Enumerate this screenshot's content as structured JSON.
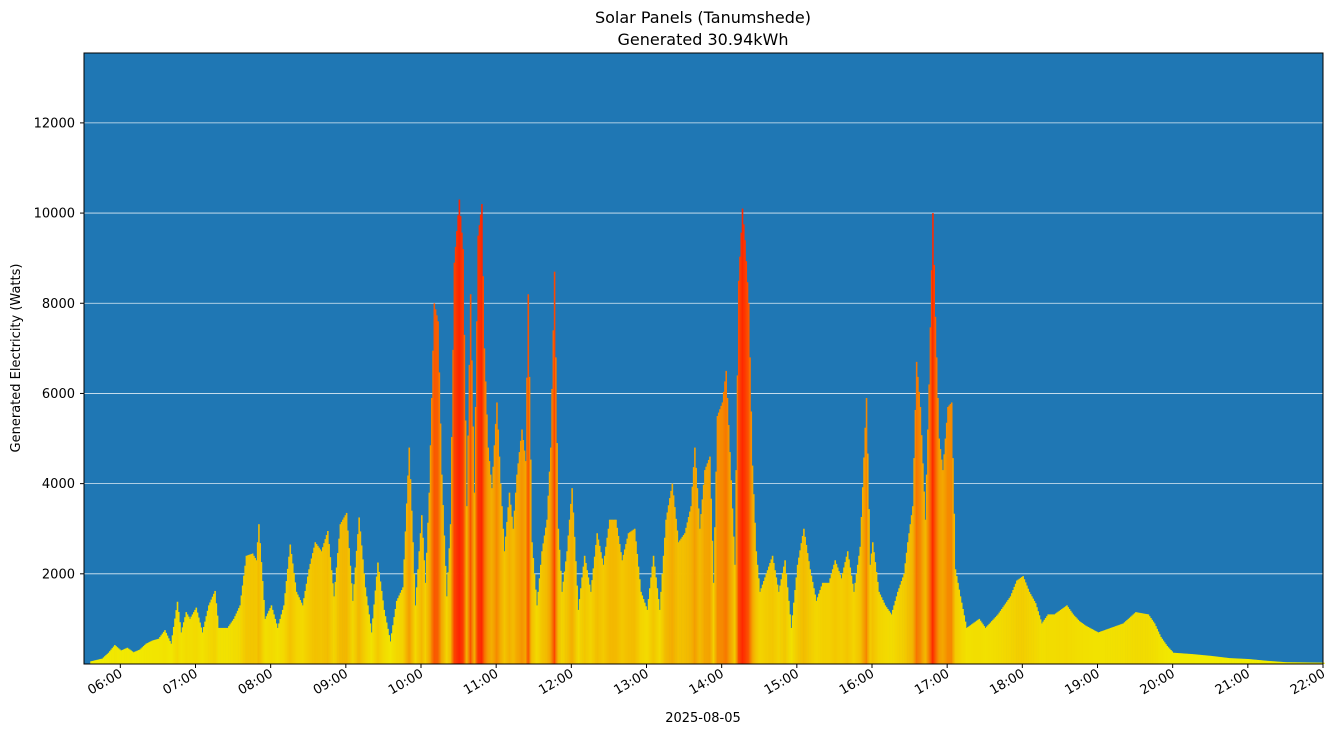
{
  "chart_data": {
    "type": "bar",
    "title": "Solar Panels (Tanumshede)",
    "subtitle": "Generated 30.94kWh",
    "xlabel": "2025-08-05",
    "ylabel": "Generated Electricity (Watts)",
    "xlim": [
      "05:31",
      "22:00"
    ],
    "ylim": [
      0,
      13550
    ],
    "y_ticks": [
      2000,
      4000,
      6000,
      8000,
      10000,
      12000
    ],
    "x_ticks": [
      "06:00",
      "07:00",
      "08:00",
      "09:00",
      "10:00",
      "11:00",
      "12:00",
      "13:00",
      "14:00",
      "15:00",
      "16:00",
      "17:00",
      "18:00",
      "19:00",
      "20:00",
      "21:00",
      "22:00"
    ],
    "grid": "horizontal",
    "colors": {
      "plot_background": "#1f77b4",
      "grid": "#ffffff",
      "low": "#f2ee00",
      "mid": "#f4a000",
      "high": "#ff2000"
    },
    "color_scale": "yellow at low power to red at high power",
    "bar_interval_minutes": 1,
    "profile": [
      [
        "05:36",
        60
      ],
      [
        "05:45",
        120
      ],
      [
        "05:50",
        250
      ],
      [
        "05:55",
        420
      ],
      [
        "06:00",
        300
      ],
      [
        "06:05",
        360
      ],
      [
        "06:10",
        260
      ],
      [
        "06:15",
        320
      ],
      [
        "06:20",
        450
      ],
      [
        "06:25",
        520
      ],
      [
        "06:30",
        560
      ],
      [
        "06:35",
        750
      ],
      [
        "06:40",
        450
      ],
      [
        "06:45",
        1380
      ],
      [
        "06:48",
        700
      ],
      [
        "06:52",
        1150
      ],
      [
        "06:55",
        1000
      ],
      [
        "07:00",
        1250
      ],
      [
        "07:05",
        700
      ],
      [
        "07:10",
        1300
      ],
      [
        "07:15",
        1620
      ],
      [
        "07:18",
        800
      ],
      [
        "07:25",
        800
      ],
      [
        "07:30",
        1000
      ],
      [
        "07:35",
        1300
      ],
      [
        "07:40",
        2400
      ],
      [
        "07:45",
        2450
      ],
      [
        "07:48",
        2300
      ],
      [
        "07:50",
        3100
      ],
      [
        "07:55",
        1000
      ],
      [
        "08:00",
        1300
      ],
      [
        "08:05",
        800
      ],
      [
        "08:10",
        1300
      ],
      [
        "08:15",
        2650
      ],
      [
        "08:20",
        1600
      ],
      [
        "08:25",
        1300
      ],
      [
        "08:30",
        2100
      ],
      [
        "08:35",
        2700
      ],
      [
        "08:40",
        2500
      ],
      [
        "08:45",
        2950
      ],
      [
        "08:50",
        1500
      ],
      [
        "08:55",
        3100
      ],
      [
        "09:00",
        3350
      ],
      [
        "09:05",
        1400
      ],
      [
        "09:10",
        3250
      ],
      [
        "09:15",
        1700
      ],
      [
        "09:20",
        700
      ],
      [
        "09:25",
        2250
      ],
      [
        "09:30",
        1200
      ],
      [
        "09:35",
        500
      ],
      [
        "09:40",
        1400
      ],
      [
        "09:45",
        1700
      ],
      [
        "09:50",
        4800
      ],
      [
        "09:55",
        1300
      ],
      [
        "10:00",
        3300
      ],
      [
        "10:03",
        1800
      ],
      [
        "10:06",
        3800
      ],
      [
        "10:10",
        8000
      ],
      [
        "10:13",
        7600
      ],
      [
        "10:16",
        4200
      ],
      [
        "10:20",
        1500
      ],
      [
        "10:23",
        3100
      ],
      [
        "10:26",
        8900
      ],
      [
        "10:30",
        10300
      ],
      [
        "10:33",
        9200
      ],
      [
        "10:36",
        3500
      ],
      [
        "10:39",
        8200
      ],
      [
        "10:42",
        3800
      ],
      [
        "10:45",
        9500
      ],
      [
        "10:48",
        10200
      ],
      [
        "10:50",
        7000
      ],
      [
        "10:53",
        4800
      ],
      [
        "10:56",
        3900
      ],
      [
        "11:00",
        5800
      ],
      [
        "11:03",
        4000
      ],
      [
        "11:06",
        2500
      ],
      [
        "11:10",
        3800
      ],
      [
        "11:13",
        3000
      ],
      [
        "11:16",
        4200
      ],
      [
        "11:20",
        5200
      ],
      [
        "11:23",
        4500
      ],
      [
        "11:25",
        8200
      ],
      [
        "11:28",
        2700
      ],
      [
        "11:32",
        1300
      ],
      [
        "11:36",
        2500
      ],
      [
        "11:40",
        3200
      ],
      [
        "11:43",
        4800
      ],
      [
        "11:46",
        8700
      ],
      [
        "11:49",
        3000
      ],
      [
        "11:52",
        1600
      ],
      [
        "11:56",
        2500
      ],
      [
        "12:00",
        3900
      ],
      [
        "12:05",
        1200
      ],
      [
        "12:10",
        2400
      ],
      [
        "12:15",
        1600
      ],
      [
        "12:20",
        2900
      ],
      [
        "12:25",
        2200
      ],
      [
        "12:30",
        3200
      ],
      [
        "12:35",
        3200
      ],
      [
        "12:40",
        2300
      ],
      [
        "12:45",
        2900
      ],
      [
        "12:50",
        3000
      ],
      [
        "12:55",
        1600
      ],
      [
        "13:00",
        1200
      ],
      [
        "13:05",
        2400
      ],
      [
        "13:10",
        1200
      ],
      [
        "13:15",
        3200
      ],
      [
        "13:20",
        4000
      ],
      [
        "13:25",
        2700
      ],
      [
        "13:30",
        2900
      ],
      [
        "13:35",
        3500
      ],
      [
        "13:38",
        4800
      ],
      [
        "13:42",
        3000
      ],
      [
        "13:46",
        4300
      ],
      [
        "13:50",
        4600
      ],
      [
        "13:53",
        1800
      ],
      [
        "13:56",
        5500
      ],
      [
        "14:00",
        5800
      ],
      [
        "14:03",
        6500
      ],
      [
        "14:06",
        4700
      ],
      [
        "14:10",
        2200
      ],
      [
        "14:13",
        8500
      ],
      [
        "14:16",
        10100
      ],
      [
        "14:18",
        9400
      ],
      [
        "14:21",
        8000
      ],
      [
        "14:24",
        4400
      ],
      [
        "14:27",
        2500
      ],
      [
        "14:30",
        1600
      ],
      [
        "14:35",
        2000
      ],
      [
        "14:40",
        2400
      ],
      [
        "14:45",
        1600
      ],
      [
        "14:50",
        2300
      ],
      [
        "14:55",
        800
      ],
      [
        "15:00",
        2200
      ],
      [
        "15:05",
        3000
      ],
      [
        "15:10",
        2100
      ],
      [
        "15:15",
        1400
      ],
      [
        "15:20",
        1800
      ],
      [
        "15:25",
        1800
      ],
      [
        "15:30",
        2300
      ],
      [
        "15:35",
        1900
      ],
      [
        "15:40",
        2500
      ],
      [
        "15:45",
        1600
      ],
      [
        "15:50",
        2600
      ],
      [
        "15:55",
        5900
      ],
      [
        "15:58",
        2200
      ],
      [
        "16:00",
        2700
      ],
      [
        "16:05",
        1600
      ],
      [
        "16:10",
        1300
      ],
      [
        "16:15",
        1100
      ],
      [
        "16:20",
        1600
      ],
      [
        "16:25",
        2000
      ],
      [
        "16:28",
        2700
      ],
      [
        "16:32",
        3500
      ],
      [
        "16:35",
        6700
      ],
      [
        "16:38",
        5700
      ],
      [
        "16:42",
        3200
      ],
      [
        "16:45",
        6200
      ],
      [
        "16:48",
        10000
      ],
      [
        "16:50",
        7700
      ],
      [
        "16:53",
        5000
      ],
      [
        "16:56",
        4300
      ],
      [
        "17:00",
        5700
      ],
      [
        "17:03",
        5800
      ],
      [
        "17:06",
        2100
      ],
      [
        "17:10",
        1500
      ],
      [
        "17:15",
        800
      ],
      [
        "17:20",
        900
      ],
      [
        "17:25",
        1000
      ],
      [
        "17:30",
        800
      ],
      [
        "17:40",
        1100
      ],
      [
        "17:50",
        1500
      ],
      [
        "17:55",
        1850
      ],
      [
        "18:00",
        1950
      ],
      [
        "18:05",
        1600
      ],
      [
        "18:10",
        1350
      ],
      [
        "18:15",
        900
      ],
      [
        "18:20",
        1100
      ],
      [
        "18:25",
        1100
      ],
      [
        "18:30",
        1200
      ],
      [
        "18:35",
        1300
      ],
      [
        "18:40",
        1100
      ],
      [
        "18:45",
        950
      ],
      [
        "18:50",
        850
      ],
      [
        "19:00",
        700
      ],
      [
        "19:10",
        800
      ],
      [
        "19:20",
        900
      ],
      [
        "19:30",
        1150
      ],
      [
        "19:40",
        1100
      ],
      [
        "19:45",
        900
      ],
      [
        "19:50",
        600
      ],
      [
        "19:55",
        400
      ],
      [
        "20:00",
        250
      ],
      [
        "20:15",
        220
      ],
      [
        "20:30",
        180
      ],
      [
        "20:45",
        130
      ],
      [
        "21:00",
        110
      ],
      [
        "21:15",
        70
      ],
      [
        "21:30",
        40
      ],
      [
        "22:00",
        30
      ]
    ]
  }
}
